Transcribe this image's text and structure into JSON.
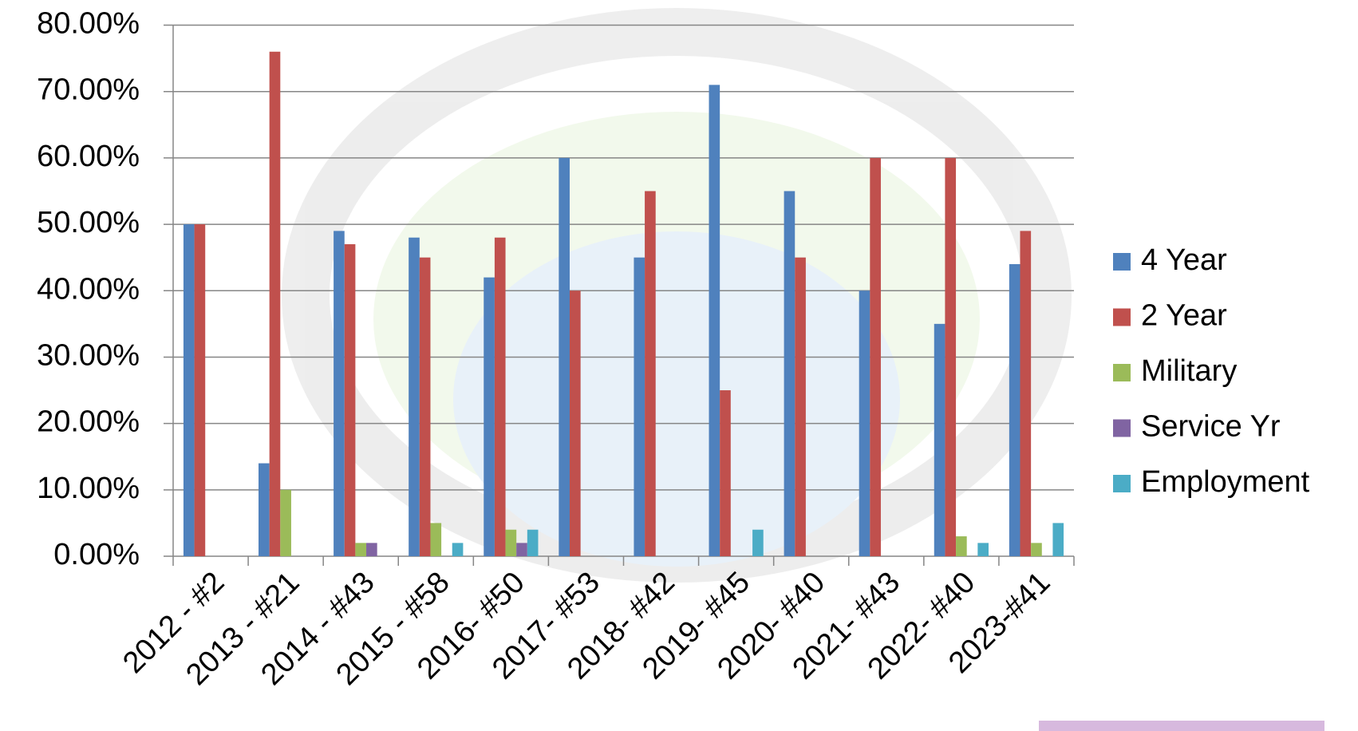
{
  "chart_data": {
    "type": "bar",
    "categories": [
      "2012 - #2",
      "2013 - #21",
      "2014 - #43",
      "2015 - #58",
      "2016- #50",
      "2017- #53",
      "2018- #42",
      "2019- #45",
      "2020- #40",
      "2021- #43",
      "2022- #40",
      "2023-#41"
    ],
    "series": [
      {
        "name": "4 Year",
        "color": "#4f81bd",
        "values": [
          50,
          14,
          49,
          48,
          42,
          60,
          45,
          71,
          55,
          40,
          35,
          44
        ]
      },
      {
        "name": "2 Year",
        "color": "#c0504d",
        "values": [
          50,
          76,
          47,
          45,
          48,
          40,
          55,
          25,
          45,
          60,
          60,
          49
        ]
      },
      {
        "name": "Military",
        "color": "#9bbb59",
        "values": [
          0,
          10,
          2,
          5,
          4,
          0,
          0,
          0,
          0,
          0,
          3,
          2
        ]
      },
      {
        "name": "Service Yr",
        "color": "#8064a2",
        "values": [
          0,
          0,
          2,
          0,
          2,
          0,
          0,
          0,
          0,
          0,
          0,
          0
        ]
      },
      {
        "name": "Employment",
        "color": "#4bacc6",
        "values": [
          0,
          0,
          0,
          2,
          4,
          0,
          0,
          4,
          0,
          0,
          2,
          5
        ]
      }
    ],
    "ylim": [
      0,
      80
    ],
    "yticks": [
      {
        "value": 0,
        "label": "0.00%"
      },
      {
        "value": 10,
        "label": "10.00%"
      },
      {
        "value": 20,
        "label": "20.00%"
      },
      {
        "value": 30,
        "label": "30.00%"
      },
      {
        "value": 40,
        "label": "40.00%"
      },
      {
        "value": 50,
        "label": "50.00%"
      },
      {
        "value": 60,
        "label": "60.00%"
      },
      {
        "value": 70,
        "label": "70.00%"
      },
      {
        "value": 80,
        "label": "80.00%"
      }
    ],
    "grid": true,
    "legend": "right"
  }
}
